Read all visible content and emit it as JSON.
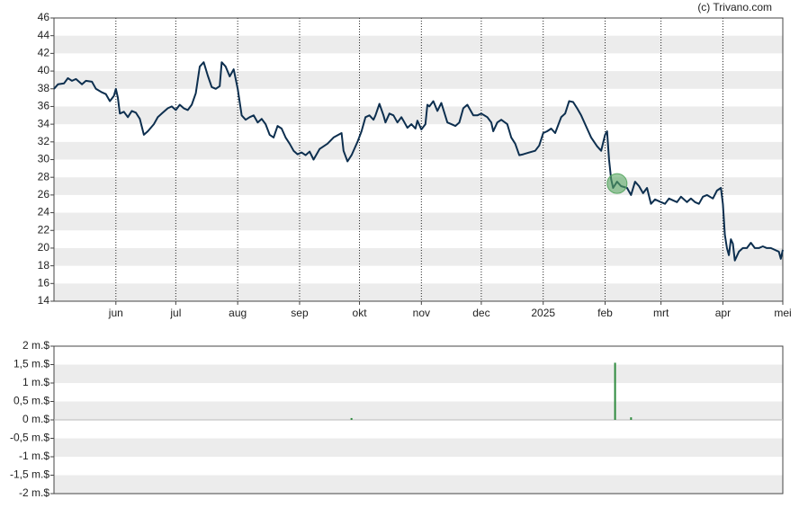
{
  "credit": "(c) Trivano.com",
  "chart_data": [
    {
      "type": "line",
      "color": "#0d2f4f",
      "grid": true,
      "x": [
        0,
        2,
        5,
        7,
        9,
        11,
        14,
        16,
        19,
        21,
        24,
        26,
        28,
        30,
        31,
        32,
        33,
        35,
        37,
        39,
        41,
        43,
        45,
        47,
        50,
        52,
        54,
        57,
        59,
        61,
        63,
        65,
        67,
        69,
        71,
        73,
        75,
        77,
        79,
        81,
        83,
        84,
        86,
        88,
        90,
        92,
        94,
        96,
        98,
        100,
        102,
        104,
        106,
        108,
        110,
        112,
        114,
        116,
        118,
        120,
        122,
        124,
        126,
        128,
        130,
        133,
        137,
        140,
        144,
        145,
        147,
        149,
        152,
        154,
        156,
        158,
        160,
        161,
        163,
        165,
        166,
        168,
        170,
        172,
        174,
        175,
        177,
        179,
        181,
        182,
        184,
        186,
        187,
        188,
        190,
        192,
        194,
        197,
        199,
        201,
        203,
        205,
        207,
        210,
        212,
        214,
        217,
        219,
        220,
        222,
        224,
        227,
        229,
        231,
        233,
        235,
        238,
        241,
        243,
        245,
        247,
        249,
        251,
        254,
        256,
        258,
        260,
        262,
        264,
        267,
        269,
        272,
        274,
        276,
        277,
        278,
        279,
        280,
        282,
        284,
        287,
        289,
        291,
        293,
        295,
        297,
        299,
        301,
        304,
        306,
        308,
        310,
        312,
        314,
        317,
        319,
        321,
        323,
        325,
        327,
        330,
        332,
        334,
        335,
        336,
        337,
        338,
        339,
        340,
        341,
        343,
        345,
        347,
        349,
        351,
        353,
        355,
        357,
        359,
        361,
        363,
        364,
        365
      ],
      "values": [
        38,
        38.5,
        38.6,
        39.2,
        38.9,
        39.1,
        38.5,
        38.9,
        38.8,
        38,
        37.6,
        37.4,
        36.6,
        37.2,
        38,
        37,
        35.2,
        35.4,
        34.8,
        35.5,
        35.3,
        34.6,
        32.8,
        33.2,
        34,
        34.8,
        35.2,
        35.8,
        36,
        35.6,
        36.2,
        35.8,
        35.6,
        36.2,
        37.5,
        40.5,
        41,
        39.5,
        38.2,
        38,
        38.3,
        41,
        40.5,
        39.4,
        40.2,
        38,
        35,
        34.5,
        34.8,
        35,
        34.2,
        34.6,
        34,
        32.8,
        32.5,
        33.8,
        33.5,
        32.5,
        31.8,
        31,
        30.6,
        30.8,
        30.5,
        30.9,
        30,
        31.2,
        31.8,
        32.5,
        33,
        31,
        29.8,
        30.5,
        32,
        33.2,
        34.8,
        35,
        34.5,
        35,
        36.3,
        35,
        34.2,
        35.2,
        35,
        34.2,
        34.8,
        34.4,
        33.6,
        34,
        33.5,
        34.4,
        33.4,
        34,
        36.2,
        36,
        36.6,
        35.5,
        36.4,
        34.2,
        34,
        33.8,
        34.2,
        35.8,
        36.2,
        35,
        35,
        35.2,
        34.8,
        34.2,
        33.2,
        34.2,
        34.5,
        34,
        32.5,
        31.8,
        30.5,
        30.6,
        30.8,
        31,
        31.6,
        33,
        33.2,
        33.5,
        33,
        34.8,
        35.2,
        36.6,
        36.5,
        35.8,
        35,
        33.5,
        32.5,
        31.5,
        31,
        32.8,
        33.2,
        30,
        27.8,
        26.8,
        27.5,
        27,
        26.8,
        26,
        27.5,
        27,
        26.2,
        26.8,
        25,
        25.5,
        25.2,
        25,
        25.6,
        25.4,
        25.2,
        25.8,
        25.2,
        25.6,
        25.2,
        25,
        25.8,
        26,
        25.6,
        26.5,
        26.8,
        25,
        21.5,
        20,
        19.2,
        21,
        20.5,
        18.6,
        19.6,
        20,
        20,
        20.6,
        20,
        20,
        20.2,
        20,
        20,
        19.8,
        19.6,
        18.8,
        19.8
      ],
      "highlight": {
        "x": 282,
        "y": 27.3,
        "color": "#5aa864"
      },
      "xlim": [
        0,
        365
      ],
      "xticks": [
        {
          "value": 31,
          "label": "jun"
        },
        {
          "value": 61,
          "label": "jul"
        },
        {
          "value": 92,
          "label": "aug"
        },
        {
          "value": 123,
          "label": "sep"
        },
        {
          "value": 153,
          "label": "okt"
        },
        {
          "value": 184,
          "label": "nov"
        },
        {
          "value": 214,
          "label": "dec"
        },
        {
          "value": 245,
          "label": "2025"
        },
        {
          "value": 276,
          "label": "feb"
        },
        {
          "value": 304,
          "label": "mrt"
        },
        {
          "value": 335,
          "label": "apr"
        },
        {
          "value": 365,
          "label": "mei"
        }
      ],
      "ylim": [
        14,
        46
      ],
      "yticks": [
        14,
        16,
        18,
        20,
        22,
        24,
        26,
        28,
        30,
        32,
        34,
        36,
        38,
        40,
        42,
        44,
        46
      ]
    },
    {
      "type": "bar",
      "color": "#2e8b3e",
      "grid": true,
      "x": [
        149,
        281,
        289
      ],
      "values": [
        0.05,
        1.55,
        0.07
      ],
      "xlim": [
        0,
        365
      ],
      "ylim": [
        -2,
        2
      ],
      "yticks": [
        {
          "value": -2,
          "label": "-2 m.$"
        },
        {
          "value": -1.5,
          "label": "-1,5 m.$"
        },
        {
          "value": -1,
          "label": "-1 m.$"
        },
        {
          "value": -0.5,
          "label": "-0,5 m.$"
        },
        {
          "value": 0,
          "label": "0 m.$"
        },
        {
          "value": 0.5,
          "label": "0,5 m.$"
        },
        {
          "value": 1,
          "label": "1 m.$"
        },
        {
          "value": 1.5,
          "label": "1,5 m.$"
        },
        {
          "value": 2,
          "label": "2 m.$"
        }
      ]
    }
  ]
}
